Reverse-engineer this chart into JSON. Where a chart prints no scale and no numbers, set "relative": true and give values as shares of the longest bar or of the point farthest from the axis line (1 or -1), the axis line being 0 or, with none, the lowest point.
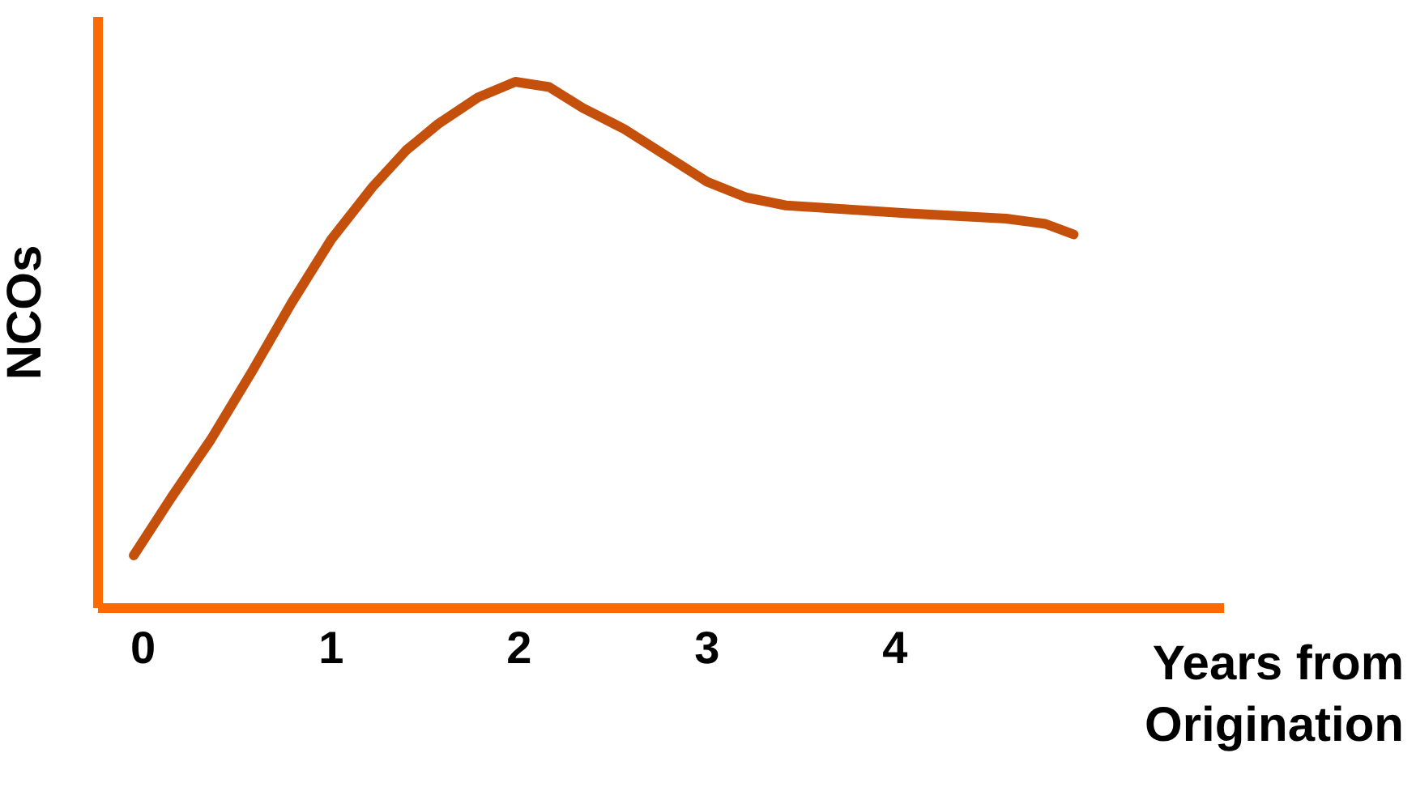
{
  "chart_data": {
    "type": "line",
    "relative": true,
    "xlabel": "Years from Origination",
    "ylabel": "NCOs",
    "xlim": [
      -0.24,
      5.75
    ],
    "xticks": [
      0,
      1,
      2,
      3,
      4
    ],
    "grid": false,
    "marker": "none",
    "line_style": "solid",
    "series": [
      {
        "color": "#c4500c",
        "x": [
          -0.05,
          0.15,
          0.36,
          0.58,
          0.79,
          1.0,
          1.22,
          1.4,
          1.57,
          1.78,
          1.98,
          2.16,
          2.34,
          2.56,
          2.78,
          3.0,
          3.21,
          3.42,
          3.64,
          4.07,
          4.59,
          4.8,
          4.95
        ],
        "values": [
          0.1,
          0.21,
          0.32,
          0.45,
          0.58,
          0.7,
          0.8,
          0.87,
          0.92,
          0.97,
          1.0,
          0.99,
          0.95,
          0.91,
          0.86,
          0.81,
          0.78,
          0.765,
          0.76,
          0.75,
          0.74,
          0.73,
          0.71
        ]
      }
    ]
  }
}
